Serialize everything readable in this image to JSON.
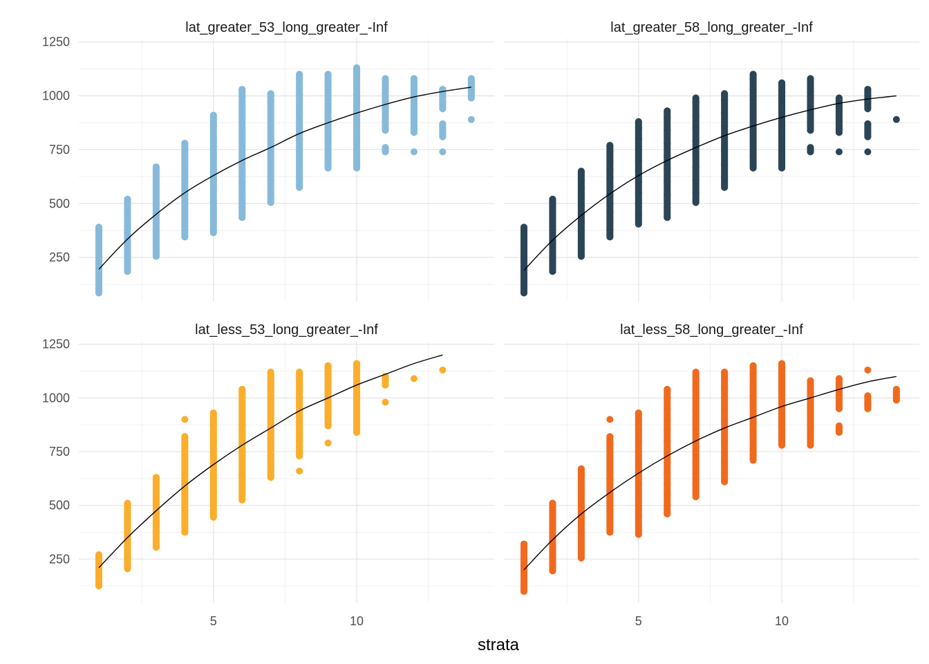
{
  "chart_data": {
    "type": "scatter",
    "xlabel": "strata",
    "ylabel": "",
    "xlim": [
      0.3,
      14.8
    ],
    "ylim": [
      45,
      1265
    ],
    "x_ticks": [
      5,
      10
    ],
    "y_ticks": [
      250,
      500,
      750,
      1000,
      1250
    ],
    "grid": true,
    "legend": "none",
    "facets": [
      {
        "title": "lat_greater_53_long_greater_-Inf",
        "color": "#87BADA",
        "points": [
          {
            "x": 1,
            "ys": [
              85,
              110,
              135,
              160,
              185,
              210,
              235,
              260,
              285,
              310,
              330,
              390
            ]
          },
          {
            "x": 2,
            "ys": [
              185,
              200,
              230,
              260,
              290,
              320,
              350,
              380,
              410,
              440,
              470,
              500,
              520
            ]
          },
          {
            "x": 3,
            "ys": [
              255,
              290,
              330,
              370,
              410,
              450,
              490,
              530,
              570,
              610,
              640,
              670
            ]
          },
          {
            "x": 4,
            "ys": [
              345,
              380,
              420,
              460,
              500,
              540,
              580,
              620,
              660,
              700,
              740,
              780
            ]
          },
          {
            "x": 5,
            "ys": [
              365,
              410,
              460,
              510,
              560,
              610,
              660,
              710,
              760,
              810,
              860,
              910
            ]
          },
          {
            "x": 6,
            "ys": [
              435,
              480,
              540,
              600,
              660,
              720,
              780,
              840,
              900,
              960,
              1000,
              1030
            ]
          },
          {
            "x": 7,
            "ys": [
              505,
              550,
              610,
              670,
              730,
              790,
              850,
              910,
              970,
              1010
            ]
          },
          {
            "x": 8,
            "ys": [
              575,
              620,
              680,
              740,
              800,
              860,
              920,
              980,
              1040,
              1080,
              1100
            ]
          },
          {
            "x": 9,
            "ys": [
              665,
              720,
              780,
              840,
              900,
              960,
              1020,
              1070,
              1100
            ]
          },
          {
            "x": 10,
            "ys": [
              665,
              700,
              740,
              800,
              860,
              920,
              980,
              1040,
              1090,
              1130
            ]
          },
          {
            "x": 11,
            "ys": [
              740,
              760,
              840,
              900,
              960,
              1000,
              1040,
              1080
            ]
          },
          {
            "x": 12,
            "ys": [
              740,
              830,
              860,
              900,
              940,
              980,
              1020,
              1050,
              1080
            ]
          },
          {
            "x": 13,
            "ys": [
              740,
              810,
              870,
              940,
              970,
              1000,
              1030
            ]
          },
          {
            "x": 14,
            "ys": [
              890,
              990,
              1020,
              1040,
              1080
            ]
          }
        ],
        "fit": {
          "x": [
            1,
            2,
            3,
            4,
            5,
            6,
            7,
            8,
            9,
            10,
            11,
            12,
            13,
            14
          ],
          "y": [
            195,
            335,
            450,
            550,
            630,
            700,
            760,
            825,
            875,
            920,
            960,
            995,
            1020,
            1040
          ]
        }
      },
      {
        "title": "lat_greater_58_long_greater_-Inf",
        "color": "#2B4556",
        "points": [
          {
            "x": 1,
            "ys": [
              85,
              110,
              135,
              160,
              185,
              210,
              235,
              260,
              285,
              310,
              330,
              390
            ]
          },
          {
            "x": 2,
            "ys": [
              185,
              200,
              230,
              260,
              290,
              320,
              350,
              380,
              410,
              440,
              470,
              500,
              520
            ]
          },
          {
            "x": 3,
            "ys": [
              255,
              290,
              330,
              370,
              410,
              450,
              490,
              530,
              570,
              610,
              650
            ]
          },
          {
            "x": 4,
            "ys": [
              345,
              380,
              420,
              460,
              500,
              540,
              580,
              620,
              660,
              700,
              740,
              770
            ]
          },
          {
            "x": 5,
            "ys": [
              405,
              450,
              500,
              550,
              600,
              650,
              700,
              750,
              800,
              850,
              880
            ]
          },
          {
            "x": 6,
            "ys": [
              435,
              480,
              540,
              600,
              660,
              720,
              780,
              840,
              900,
              930
            ]
          },
          {
            "x": 7,
            "ys": [
              505,
              550,
              610,
              670,
              730,
              790,
              850,
              910,
              970,
              990
            ]
          },
          {
            "x": 8,
            "ys": [
              575,
              620,
              680,
              740,
              800,
              860,
              920,
              980,
              1010
            ]
          },
          {
            "x": 9,
            "ys": [
              665,
              720,
              780,
              840,
              900,
              960,
              1000,
              1030,
              1080,
              1100
            ]
          },
          {
            "x": 10,
            "ys": [
              665,
              700,
              740,
              800,
              860,
              920,
              980,
              1030,
              1060
            ]
          },
          {
            "x": 11,
            "ys": [
              740,
              760,
              840,
              900,
              960,
              1000,
              1040,
              1080
            ]
          },
          {
            "x": 12,
            "ys": [
              740,
              830,
              880,
              930,
              960,
              990
            ]
          },
          {
            "x": 13,
            "ys": [
              740,
              810,
              870,
              940,
              970,
              1000,
              1030
            ]
          },
          {
            "x": 14,
            "ys": [
              890
            ]
          }
        ],
        "fit": {
          "x": [
            1,
            2,
            3,
            4,
            5,
            6,
            7,
            8,
            9,
            10,
            11,
            12,
            13,
            14
          ],
          "y": [
            190,
            330,
            445,
            545,
            630,
            700,
            760,
            815,
            860,
            900,
            935,
            965,
            985,
            1000
          ]
        }
      },
      {
        "title": "lat_less_53_long_greater_-Inf",
        "color": "#FAAE2B",
        "points": [
          {
            "x": 1,
            "ys": [
              125,
              150,
              175,
              200,
              225,
              250,
              270
            ]
          },
          {
            "x": 2,
            "ys": [
              205,
              230,
              270,
              310,
              350,
              390,
              430,
              470,
              510
            ]
          },
          {
            "x": 3,
            "ys": [
              305,
              340,
              380,
              420,
              460,
              500,
              540,
              580,
              630
            ]
          },
          {
            "x": 4,
            "ys": [
              375,
              400,
              440,
              480,
              520,
              560,
              600,
              640,
              680,
              720,
              780,
              820,
              900
            ]
          },
          {
            "x": 5,
            "ys": [
              445,
              480,
              520,
              560,
              600,
              640,
              680,
              720,
              760,
              800,
              840,
              880,
              930
            ]
          },
          {
            "x": 6,
            "ys": [
              525,
              560,
              600,
              640,
              680,
              720,
              760,
              800,
              840,
              880,
              920,
              960,
              1000,
              1040
            ]
          },
          {
            "x": 7,
            "ys": [
              630,
              690,
              730,
              770,
              810,
              850,
              890,
              930,
              970,
              1010,
              1050,
              1090,
              1120
            ]
          },
          {
            "x": 8,
            "ys": [
              660,
              730,
              770,
              800,
              840,
              880,
              920,
              960,
              1000,
              1040,
              1080,
              1120
            ]
          },
          {
            "x": 9,
            "ys": [
              790,
              870,
              910,
              950,
              990,
              1030,
              1070,
              1110,
              1150
            ]
          },
          {
            "x": 10,
            "ys": [
              840,
              900,
              940,
              980,
              1020,
              1060,
              1100,
              1130,
              1160
            ]
          },
          {
            "x": 11,
            "ys": [
              980,
              1060,
              1100
            ]
          },
          {
            "x": 12,
            "ys": [
              1090
            ]
          },
          {
            "x": 13,
            "ys": [
              1130
            ]
          }
        ],
        "fit": {
          "x": [
            1,
            2,
            3,
            4,
            5,
            6,
            7,
            8,
            9,
            10,
            11,
            12,
            13
          ],
          "y": [
            210,
            350,
            475,
            590,
            690,
            780,
            860,
            940,
            1000,
            1060,
            1110,
            1160,
            1200
          ]
        }
      },
      {
        "title": "lat_less_58_long_greater_-Inf",
        "color": "#F06A1E",
        "points": [
          {
            "x": 1,
            "ys": [
              100,
              125,
              150,
              175,
              200,
              225,
              250,
              275,
              300,
              320
            ]
          },
          {
            "x": 2,
            "ys": [
              195,
              230,
              270,
              310,
              350,
              390,
              430,
              470,
              510
            ]
          },
          {
            "x": 3,
            "ys": [
              255,
              290,
              330,
              370,
              410,
              450,
              490,
              530,
              570,
              610,
              650,
              670
            ]
          },
          {
            "x": 4,
            "ys": [
              375,
              420,
              470,
              520,
              570,
              620,
              670,
              720,
              770,
              820,
              900
            ]
          },
          {
            "x": 5,
            "ys": [
              365,
              400,
              450,
              500,
              550,
              600,
              650,
              700,
              750,
              800,
              850,
              900,
              930
            ]
          },
          {
            "x": 6,
            "ys": [
              460,
              500,
              550,
              600,
              650,
              700,
              750,
              800,
              850,
              900,
              950,
              1000,
              1040
            ]
          },
          {
            "x": 7,
            "ys": [
              540,
              600,
              650,
              700,
              750,
              800,
              850,
              900,
              950,
              1000,
              1050,
              1100,
              1120
            ]
          },
          {
            "x": 8,
            "ys": [
              610,
              650,
              700,
              750,
              800,
              850,
              900,
              950,
              1000,
              1050,
              1100,
              1120
            ]
          },
          {
            "x": 9,
            "ys": [
              710,
              760,
              810,
              860,
              910,
              960,
              1010,
              1060,
              1110,
              1150
            ]
          },
          {
            "x": 10,
            "ys": [
              780,
              830,
              880,
              930,
              980,
              1030,
              1080,
              1130,
              1160
            ]
          },
          {
            "x": 11,
            "ys": [
              780,
              820,
              880,
              930,
              980,
              1030,
              1080
            ]
          },
          {
            "x": 12,
            "ys": [
              840,
              870,
              950,
              970,
              1010,
              1040,
              1070,
              1090
            ]
          },
          {
            "x": 13,
            "ys": [
              950,
              970,
              1010,
              1130
            ]
          },
          {
            "x": 14,
            "ys": [
              990,
              1010,
              1030,
              1040
            ]
          }
        ],
        "fit": {
          "x": [
            1,
            2,
            3,
            4,
            5,
            6,
            7,
            8,
            9,
            10,
            11,
            12,
            13,
            14
          ],
          "y": [
            200,
            340,
            460,
            560,
            650,
            730,
            800,
            860,
            910,
            960,
            1000,
            1040,
            1075,
            1100
          ]
        }
      }
    ]
  }
}
